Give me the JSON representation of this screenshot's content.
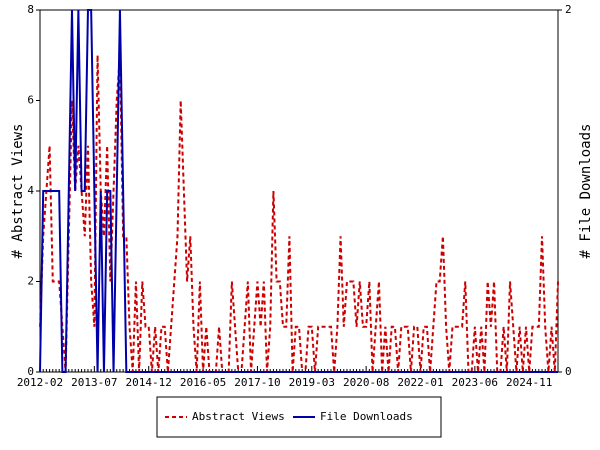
{
  "chart_data": {
    "type": "line",
    "ylabel": "# Abstract Views",
    "y2label": "# File Downloads",
    "categories": [
      "2012-02",
      null,
      null,
      null,
      null,
      null,
      null,
      null,
      null,
      null,
      null,
      null,
      null,
      null,
      null,
      null,
      null,
      "2013-07",
      null,
      null,
      null,
      null,
      null,
      null,
      null,
      null,
      null,
      null,
      null,
      null,
      null,
      null,
      null,
      null,
      "2014-12",
      null,
      null,
      null,
      null,
      null,
      null,
      null,
      null,
      null,
      null,
      null,
      null,
      null,
      null,
      null,
      null,
      "2016-05",
      null,
      null,
      null,
      null,
      null,
      null,
      null,
      null,
      null,
      null,
      null,
      null,
      null,
      null,
      null,
      null,
      "2017-10",
      null,
      null,
      null,
      null,
      null,
      null,
      null,
      null,
      null,
      null,
      null,
      null,
      null,
      null,
      null,
      null,
      "2019-03",
      null,
      null,
      null,
      null,
      null,
      null,
      null,
      null,
      null,
      null,
      null,
      null,
      null,
      null,
      null,
      null,
      "2020-08",
      null,
      null,
      null,
      null,
      null,
      null,
      null,
      null,
      null,
      null,
      null,
      null,
      null,
      null,
      null,
      null,
      "2022-01",
      null,
      null,
      null,
      null,
      null,
      null,
      null,
      null,
      null,
      null,
      null,
      null,
      null,
      null,
      null,
      null,
      "2023-06",
      null,
      null,
      null,
      null,
      null,
      null,
      null,
      null,
      null,
      null,
      null,
      null,
      null,
      null,
      null,
      null,
      "2024-11",
      null,
      null,
      null,
      null,
      null,
      null,
      null,
      null,
      null
    ],
    "series": [
      {
        "name": "Abstract Views",
        "color": "#cc0000",
        "dash": true,
        "values": [
          1,
          3,
          4,
          5,
          2,
          2,
          2,
          1,
          0,
          3,
          6,
          4,
          5,
          4,
          3,
          5,
          2,
          1,
          7,
          4,
          3,
          5,
          2,
          4,
          6,
          7,
          3,
          3,
          1,
          0,
          2,
          0,
          2,
          1,
          1,
          0,
          1,
          0,
          1,
          1,
          0,
          1,
          2,
          3,
          6,
          4,
          2,
          3,
          1,
          0,
          2,
          0,
          1,
          0,
          0,
          0,
          1,
          0,
          0,
          0,
          2,
          1,
          0,
          0,
          1,
          2,
          0,
          1,
          2,
          1,
          2,
          0,
          1,
          4,
          2,
          2,
          1,
          1,
          3,
          0,
          1,
          1,
          0,
          0,
          1,
          1,
          0,
          1,
          1,
          1,
          1,
          1,
          0,
          1,
          3,
          1,
          2,
          2,
          2,
          1,
          2,
          1,
          1,
          2,
          0,
          1,
          2,
          0,
          1,
          0,
          1,
          1,
          0,
          1,
          1,
          1,
          0,
          1,
          1,
          0,
          1,
          1,
          0,
          1,
          2,
          2,
          3,
          1,
          0,
          1,
          1,
          1,
          1,
          2,
          0,
          0,
          1,
          0,
          1,
          0,
          2,
          1,
          2,
          0,
          0,
          1,
          0,
          2,
          1,
          0,
          1,
          0,
          1,
          0,
          1,
          1,
          1,
          3,
          1,
          0,
          1,
          0,
          2
        ]
      },
      {
        "name": "File Downloads",
        "color": "#0000aa",
        "axis": "y2",
        "values": [
          0,
          1,
          1,
          1,
          1,
          1,
          1,
          0,
          0,
          1,
          2,
          1,
          2,
          1,
          1,
          2,
          2,
          1,
          0,
          1,
          0,
          1,
          1,
          0,
          1,
          2,
          1,
          0,
          0,
          0,
          0,
          0,
          0,
          0,
          0,
          0,
          0,
          0,
          0,
          0,
          0,
          0,
          0,
          0,
          0,
          0,
          0,
          0,
          0,
          0,
          0,
          0,
          0,
          0,
          0,
          0,
          0,
          0,
          0,
          0,
          0,
          0,
          0,
          0,
          0,
          0,
          0,
          0,
          0,
          0,
          0,
          0,
          0,
          0,
          0,
          0,
          0,
          0,
          0,
          0,
          0,
          0,
          0,
          0,
          0,
          0,
          0,
          0,
          0,
          0,
          0,
          0,
          0,
          0,
          0,
          0,
          0,
          0,
          0,
          0,
          0,
          0,
          0,
          0,
          0,
          0,
          0,
          0,
          0,
          0,
          0,
          0,
          0,
          0,
          0,
          0,
          0,
          0,
          0,
          0,
          0,
          0,
          0,
          0,
          0,
          0,
          0,
          0,
          0,
          0,
          0,
          0,
          0,
          0,
          0,
          0,
          0,
          0,
          0,
          0,
          0,
          0,
          0,
          0,
          0,
          0,
          0,
          0,
          0,
          0,
          0,
          0,
          0,
          0,
          0,
          0,
          0,
          0,
          0,
          0,
          0,
          0,
          0
        ]
      }
    ],
    "ylim": [
      0,
      8
    ],
    "yticks": [
      0,
      2,
      4,
      6,
      8
    ],
    "y2lim": [
      0,
      2
    ],
    "y2ticks": [
      0,
      2
    ],
    "legend": "bottom"
  }
}
